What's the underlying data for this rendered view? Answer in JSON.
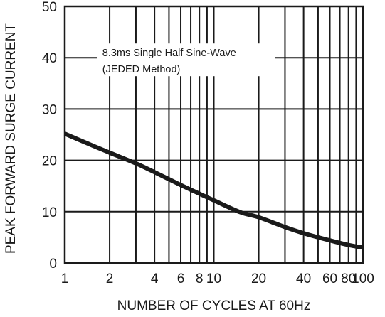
{
  "chart_data": {
    "type": "line",
    "xscale": "log",
    "xlim": [
      1,
      100
    ],
    "ylim": [
      0,
      50
    ],
    "grid": true,
    "x_ticks": [
      {
        "value": 1,
        "label": "1"
      },
      {
        "value": 2,
        "label": "2"
      },
      {
        "value": 4,
        "label": "4"
      },
      {
        "value": 6,
        "label": "6"
      },
      {
        "value": 8,
        "label": "8"
      },
      {
        "value": 10,
        "label": "10"
      },
      {
        "value": 20,
        "label": "20"
      },
      {
        "value": 40,
        "label": "40"
      },
      {
        "value": 60,
        "label": "60"
      },
      {
        "value": 80,
        "label": "80"
      },
      {
        "value": 100,
        "label": "100"
      }
    ],
    "x_minor_grid": [
      3,
      5,
      7,
      9,
      30,
      50,
      70,
      90
    ],
    "y_ticks": [
      {
        "value": 0,
        "label": "0"
      },
      {
        "value": 10,
        "label": "10"
      },
      {
        "value": 20,
        "label": "20"
      },
      {
        "value": 30,
        "label": "30"
      },
      {
        "value": 40,
        "label": "40"
      },
      {
        "value": 50,
        "label": "50"
      }
    ],
    "xlabel": "NUMBER OF CYCLES AT 60Hz",
    "ylabel": "PEAK FORWARD SURGE CURRENT",
    "annotation": {
      "lines": [
        "8.3ms Single Half Sine-Wave",
        "(JEDED Method)"
      ],
      "x": 1.6,
      "y": 40
    },
    "series": [
      {
        "x": [
          1,
          1.5,
          2,
          3,
          4,
          6,
          8,
          10,
          15,
          20,
          30,
          40,
          60,
          80,
          100
        ],
        "y": [
          25.2,
          23.0,
          21.5,
          19.4,
          17.7,
          15.2,
          13.5,
          12.2,
          9.9,
          8.9,
          7.0,
          5.8,
          4.4,
          3.5,
          3.0
        ]
      }
    ],
    "colors": {
      "line": "#1a1a1a",
      "grid": "#1a1a1a",
      "background": "#ffffff"
    }
  }
}
